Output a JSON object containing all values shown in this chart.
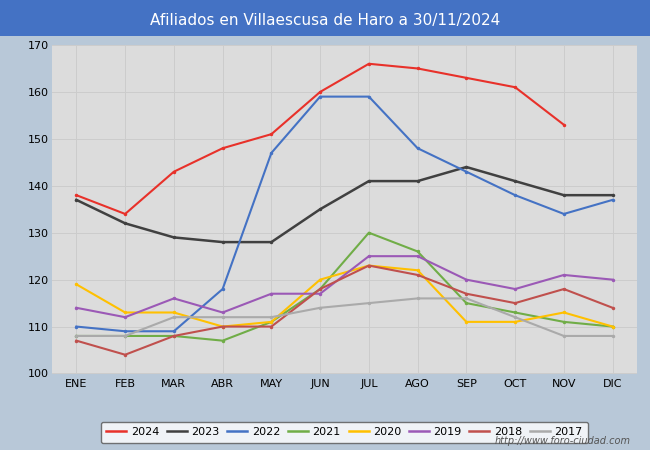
{
  "title": "Afiliados en Villaescusa de Haro a 30/11/2024",
  "title_color": "#ffffff",
  "title_bg_color": "#4472c4",
  "months": [
    "ENE",
    "FEB",
    "MAR",
    "ABR",
    "MAY",
    "JUN",
    "JUL",
    "AGO",
    "SEP",
    "OCT",
    "NOV",
    "DIC"
  ],
  "series": {
    "2024": {
      "color": "#e8312a",
      "data": [
        138,
        134,
        143,
        148,
        151,
        160,
        166,
        165,
        163,
        161,
        153,
        null
      ],
      "linewidth": 1.5
    },
    "2023": {
      "color": "#404040",
      "data": [
        137,
        132,
        129,
        128,
        128,
        135,
        141,
        141,
        144,
        141,
        138,
        138
      ],
      "linewidth": 1.8
    },
    "2022": {
      "color": "#4472c4",
      "data": [
        110,
        109,
        109,
        118,
        147,
        159,
        159,
        148,
        143,
        138,
        134,
        137
      ],
      "linewidth": 1.5
    },
    "2021": {
      "color": "#70ad47",
      "data": [
        108,
        108,
        108,
        107,
        111,
        118,
        130,
        126,
        115,
        113,
        111,
        110
      ],
      "linewidth": 1.5
    },
    "2020": {
      "color": "#ffc000",
      "data": [
        119,
        113,
        113,
        110,
        111,
        120,
        123,
        122,
        111,
        111,
        113,
        110
      ],
      "linewidth": 1.5
    },
    "2019": {
      "color": "#9b59b6",
      "data": [
        114,
        112,
        116,
        113,
        117,
        117,
        125,
        125,
        120,
        118,
        121,
        120
      ],
      "linewidth": 1.5
    },
    "2018": {
      "color": "#c0504d",
      "data": [
        107,
        104,
        108,
        110,
        110,
        118,
        123,
        121,
        117,
        115,
        118,
        114
      ],
      "linewidth": 1.5
    },
    "2017": {
      "color": "#aaaaaa",
      "data": [
        108,
        108,
        112,
        112,
        112,
        114,
        115,
        116,
        116,
        112,
        108,
        108
      ],
      "linewidth": 1.5
    }
  },
  "ylim": [
    100,
    170
  ],
  "yticks": [
    100,
    110,
    120,
    130,
    140,
    150,
    160,
    170
  ],
  "grid_color": "#cccccc",
  "fig_bg_color": "#b8c8d8",
  "plot_bg_color": "#dcdcdc",
  "watermark": "http://www.foro-ciudad.com",
  "legend_order": [
    "2024",
    "2023",
    "2022",
    "2021",
    "2020",
    "2019",
    "2018",
    "2017"
  ]
}
